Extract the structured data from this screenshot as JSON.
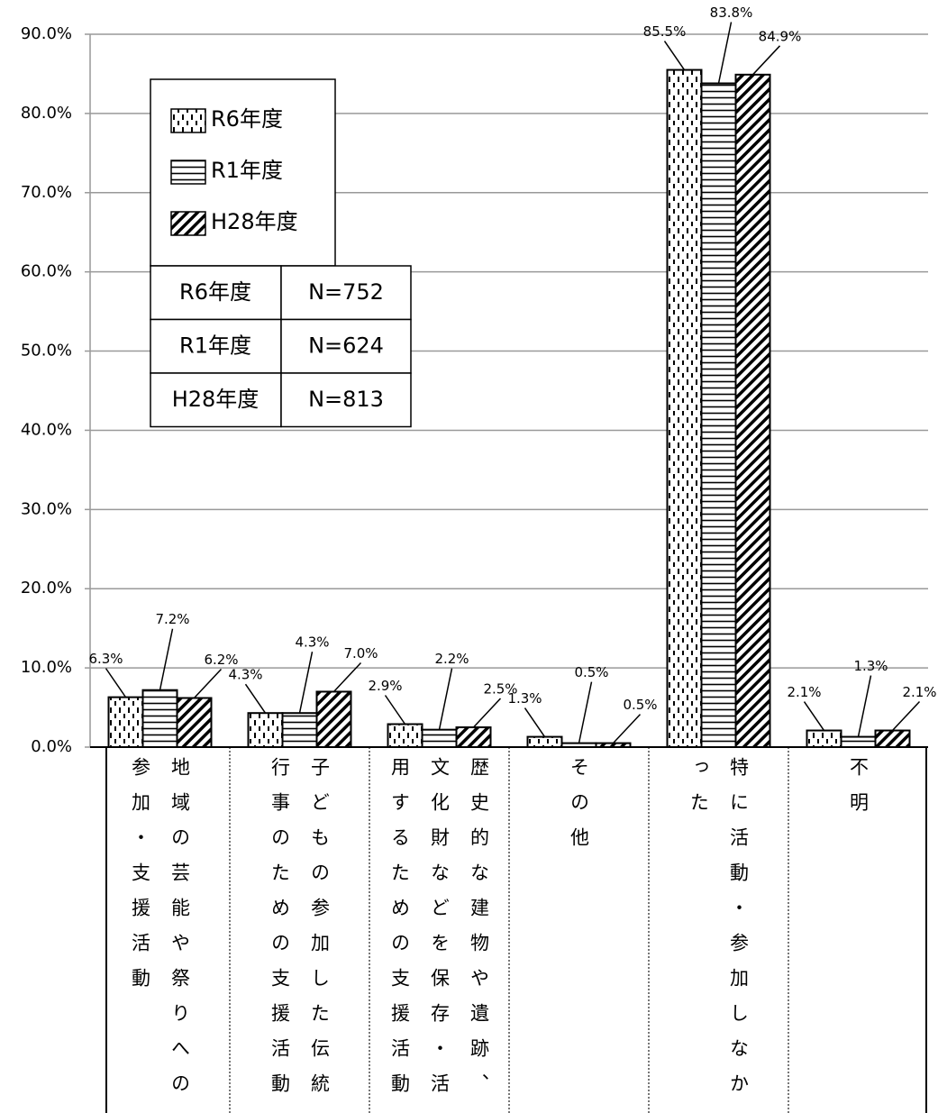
{
  "chart_data": {
    "type": "bar",
    "categories": [
      "地域の芸能や祭りへの参加・支援活動",
      "子どもの参加した伝統行事のための支援活動",
      "歴史的な建物や遺跡、文化財などを保存・活用するための支援活動",
      "その他",
      "特に活動・参加しなかった",
      "不明"
    ],
    "series": [
      {
        "name": "R6年度",
        "values": [
          6.3,
          4.3,
          2.9,
          1.3,
          85.5,
          2.1
        ],
        "value_labels": [
          "6.3%",
          "4.3%",
          "2.9%",
          "1.3%",
          "85.5%",
          "2.1%"
        ]
      },
      {
        "name": "R1年度",
        "values": [
          7.2,
          4.3,
          2.2,
          0.5,
          83.8,
          1.3
        ],
        "value_labels": [
          "7.2%",
          "4.3%",
          "2.2%",
          "0.5%",
          "83.8%",
          "1.3%"
        ]
      },
      {
        "name": "H28年度",
        "values": [
          6.2,
          7.0,
          2.5,
          0.5,
          84.9,
          2.1
        ],
        "value_labels": [
          "6.2%",
          "7.0%",
          "2.5%",
          "0.5%",
          "84.9%",
          "2.1%"
        ]
      }
    ],
    "ylim": [
      0,
      90
    ],
    "yticks": [
      {
        "value": 0,
        "label": "0.0%"
      },
      {
        "value": 10,
        "label": "10.0%"
      },
      {
        "value": 20,
        "label": "20.0%"
      },
      {
        "value": 30,
        "label": "30.0%"
      },
      {
        "value": 40,
        "label": "40.0%"
      },
      {
        "value": 50,
        "label": "50.0%"
      },
      {
        "value": 60,
        "label": "60.0%"
      },
      {
        "value": 70,
        "label": "70.0%"
      },
      {
        "value": 80,
        "label": "80.0%"
      },
      {
        "value": 90,
        "label": "90.0%"
      }
    ],
    "grid": true,
    "n_table": [
      [
        "R6年度",
        "N=752"
      ],
      [
        "R1年度",
        "N=624"
      ],
      [
        "H28年度",
        "N=813"
      ]
    ]
  }
}
